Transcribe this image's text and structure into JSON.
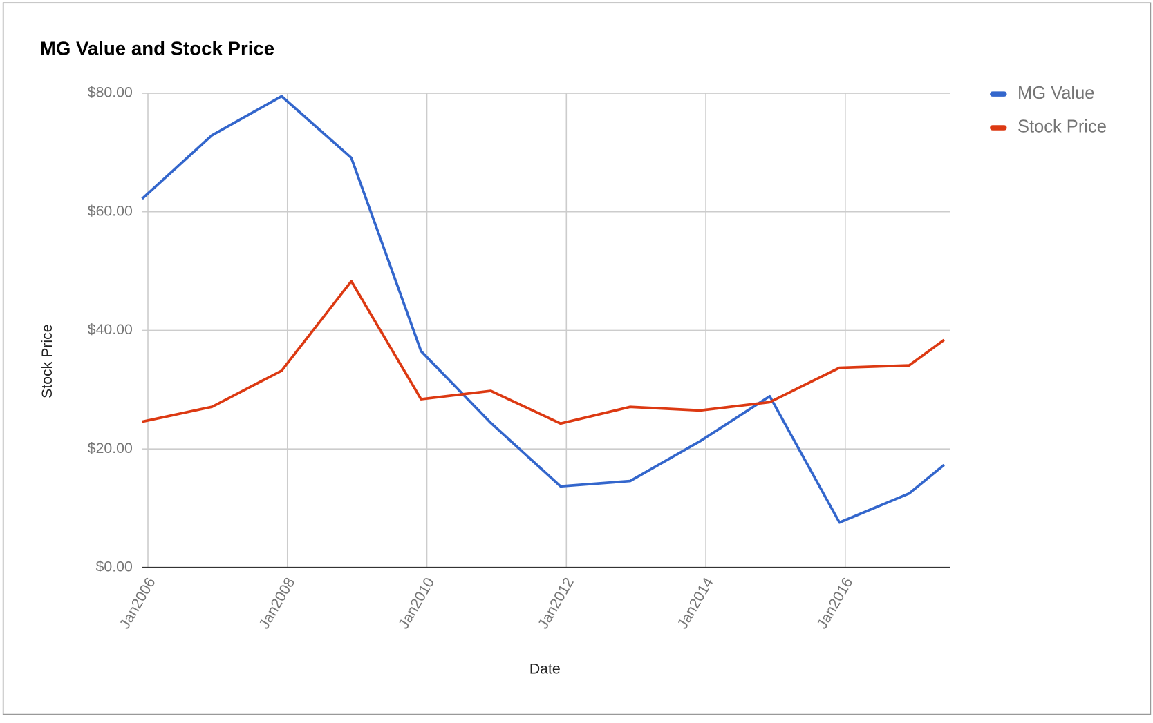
{
  "chart_data": {
    "type": "line",
    "title": "MG Value and Stock Price",
    "x_label": "Date",
    "y_label": "Stock Price",
    "x": [
      "2005-12",
      "2006-12",
      "2007-12",
      "2008-12",
      "2009-12",
      "2010-12",
      "2011-12",
      "2012-12",
      "2013-12",
      "2014-12",
      "2015-12",
      "2016-12",
      "2017-06"
    ],
    "series": [
      {
        "name": "MG Value",
        "color": "#3366cc",
        "values": [
          62.2,
          72.9,
          79.5,
          69.1,
          36.5,
          24.4,
          13.7,
          14.6,
          21.3,
          28.9,
          7.6,
          12.5,
          17.3
        ]
      },
      {
        "name": "Stock Price",
        "color": "#dc3912",
        "values": [
          24.6,
          27.1,
          33.2,
          48.3,
          28.4,
          29.8,
          24.3,
          27.1,
          26.5,
          27.9,
          33.7,
          34.1,
          38.4
        ]
      }
    ],
    "xlim": [
      "2005-12",
      "2017-07"
    ],
    "xticks": [
      {
        "value": "2006-01",
        "label": "Jan2006"
      },
      {
        "value": "2008-01",
        "label": "Jan2008"
      },
      {
        "value": "2010-01",
        "label": "Jan2010"
      },
      {
        "value": "2012-01",
        "label": "Jan2012"
      },
      {
        "value": "2014-01",
        "label": "Jan2014"
      },
      {
        "value": "2016-01",
        "label": "Jan2016"
      }
    ],
    "ylim": [
      0,
      80
    ],
    "yticks": [
      {
        "value": 0,
        "label": "$0.00"
      },
      {
        "value": 20,
        "label": "$20.00"
      },
      {
        "value": 40,
        "label": "$40.00"
      },
      {
        "value": 60,
        "label": "$60.00"
      },
      {
        "value": 80,
        "label": "$80.00"
      }
    ],
    "grid": true,
    "legend": "right"
  }
}
